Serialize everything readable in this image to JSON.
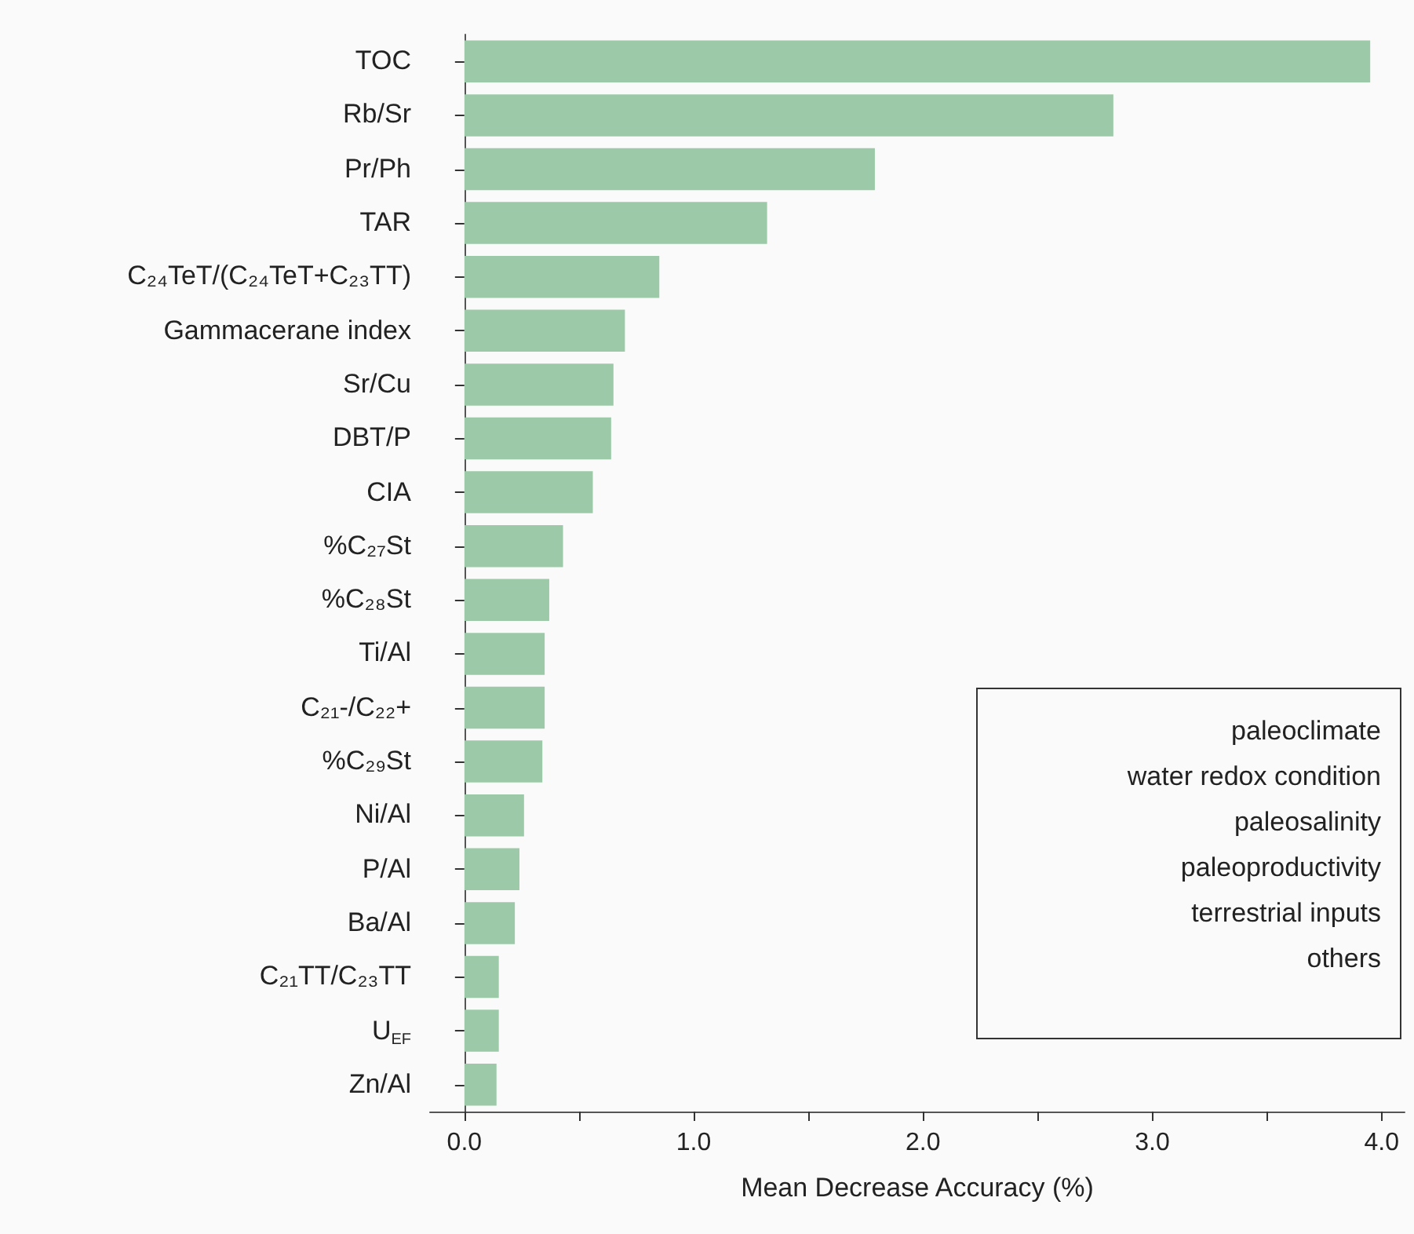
{
  "chart_data": {
    "type": "bar",
    "orientation": "horizontal",
    "xlabel": "Mean Decrease Accuracy (%)",
    "categories": [
      "TOC",
      "Rb/Sr",
      "Pr/Ph",
      "TAR",
      "C₂₄TeT/(C₂₄TeT+C₂₃TT)",
      "Gammacerane index",
      "Sr/Cu",
      "DBT/P",
      "CIA",
      "%C₂₇St",
      "%C₂₈St",
      "Ti/Al",
      "C₂₁-/C₂₂+",
      "%C₂₉St",
      "Ni/Al",
      "P/Al",
      "Ba/Al",
      "C₂₁TT/C₂₃TT",
      "U$_{EF}$",
      "Zn/Al"
    ],
    "values": [
      3.95,
      2.83,
      1.79,
      1.32,
      0.85,
      0.7,
      0.65,
      0.64,
      0.56,
      0.43,
      0.37,
      0.35,
      0.35,
      0.34,
      0.26,
      0.24,
      0.22,
      0.15,
      0.15,
      0.14
    ],
    "color": "#9ccaa8",
    "xlim": [
      -0.15,
      4.1
    ],
    "xticks": [
      {
        "value": 0,
        "label": "0.0"
      },
      {
        "value": 0.5,
        "label": null
      },
      {
        "value": 1,
        "label": "1.0"
      },
      {
        "value": 1.5,
        "label": null
      },
      {
        "value": 2,
        "label": "2.0"
      },
      {
        "value": 2.5,
        "label": null
      },
      {
        "value": 3,
        "label": "3.0"
      },
      {
        "value": 3.5,
        "label": null
      },
      {
        "value": 4,
        "label": "4.0"
      }
    ],
    "annotations": [
      "paleoclimate",
      "water redox condition",
      "paleosalinity",
      "paleoproductivity",
      "terrestrial inputs",
      "others"
    ],
    "grid": false
  }
}
